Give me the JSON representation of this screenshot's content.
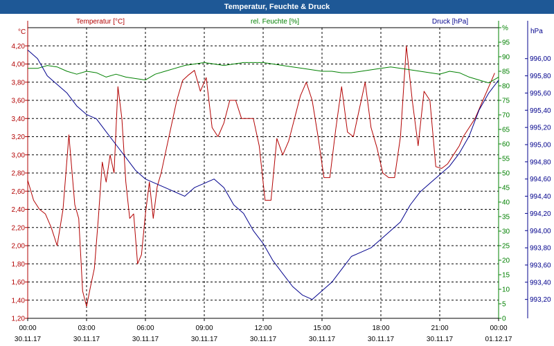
{
  "window_title": "Temperatur, Feuchte & Druck",
  "colors": {
    "temperature": "#b20000",
    "humidity": "#008000",
    "pressure": "#00008c",
    "title_bar": "#1e5896",
    "grid": "#000000"
  },
  "chart_data": {
    "type": "line",
    "title": "Temperatur, Feuchte & Druck",
    "grid": true,
    "x_ticks": [
      {
        "time": "00:00",
        "date": "30.11.17"
      },
      {
        "time": "03:00",
        "date": "30.11.17"
      },
      {
        "time": "06:00",
        "date": "30.11.17"
      },
      {
        "time": "09:00",
        "date": "30.11.17"
      },
      {
        "time": "12:00",
        "date": "30.11.17"
      },
      {
        "time": "15:00",
        "date": "30.11.17"
      },
      {
        "time": "18:00",
        "date": "30.11.17"
      },
      {
        "time": "21:00",
        "date": "30.11.17"
      },
      {
        "time": "00:00",
        "date": "01.12.17"
      }
    ],
    "axes": {
      "temperature": {
        "label": "Temperatur [°C]",
        "unit": "°C",
        "ylim": [
          1.2,
          4.4
        ],
        "ticks": [
          "1,20",
          "1,40",
          "1,60",
          "1,80",
          "2,00",
          "2,20",
          "2,40",
          "2,60",
          "2,80",
          "3,00",
          "3,20",
          "3,40",
          "3,60",
          "3,80",
          "4,00",
          "4,20"
        ]
      },
      "humidity": {
        "label": "rel. Feuchte [%]",
        "unit": "%",
        "ylim": [
          0,
          100
        ],
        "ticks": [
          "0",
          "5",
          "10",
          "15",
          "20",
          "25",
          "30",
          "35",
          "40",
          "45",
          "50",
          "55",
          "60",
          "65",
          "70",
          "75",
          "80",
          "85",
          "90",
          "95",
          "%"
        ]
      },
      "pressure": {
        "label": "Druck [hPa]",
        "unit": "hPa",
        "ylim": [
          992.98,
          996.36
        ],
        "ticks": [
          "993,20",
          "993,40",
          "993,60",
          "993,80",
          "994,00",
          "994,20",
          "994,40",
          "994,60",
          "994,80",
          "995,00",
          "995,20",
          "995,40",
          "995,60",
          "995,80",
          "996,00"
        ]
      }
    },
    "series": [
      {
        "name": "Temperatur [°C]",
        "axis": "temperature",
        "x_hours": [
          0,
          0.3,
          0.6,
          0.9,
          1.2,
          1.5,
          1.8,
          2.1,
          2.4,
          2.6,
          2.8,
          3.0,
          3.2,
          3.4,
          3.6,
          3.8,
          4.0,
          4.2,
          4.4,
          4.6,
          4.8,
          5.0,
          5.2,
          5.4,
          5.6,
          5.8,
          6.0,
          6.2,
          6.4,
          6.6,
          6.8,
          7.0,
          7.3,
          7.6,
          7.9,
          8.2,
          8.5,
          8.8,
          9.1,
          9.4,
          9.7,
          10.0,
          10.3,
          10.6,
          10.9,
          11.2,
          11.5,
          11.8,
          12.1,
          12.4,
          12.7,
          13.0,
          13.3,
          13.6,
          13.9,
          14.2,
          14.5,
          14.8,
          15.1,
          15.4,
          15.7,
          16.0,
          16.3,
          16.6,
          16.9,
          17.2,
          17.5,
          17.8,
          18.1,
          18.4,
          18.7,
          19.0,
          19.3,
          19.6,
          19.9,
          20.2,
          20.5,
          20.8,
          21.1,
          21.4,
          21.7,
          22.0,
          22.2,
          22.5,
          22.8,
          23.0,
          23.2,
          23.4,
          23.6,
          23.8
        ],
        "values": [
          2.72,
          2.5,
          2.4,
          2.35,
          2.2,
          2.0,
          2.4,
          3.22,
          2.45,
          2.3,
          1.5,
          1.33,
          1.55,
          1.75,
          2.3,
          2.92,
          2.7,
          3.0,
          2.8,
          3.75,
          3.4,
          2.7,
          2.3,
          2.35,
          1.8,
          1.9,
          2.35,
          2.7,
          2.3,
          2.65,
          2.8,
          3.0,
          3.3,
          3.6,
          3.82,
          3.88,
          3.93,
          3.7,
          3.85,
          3.3,
          3.2,
          3.35,
          3.6,
          3.6,
          3.4,
          3.4,
          3.4,
          3.1,
          2.5,
          2.5,
          3.18,
          3.0,
          3.15,
          3.4,
          3.65,
          3.8,
          3.6,
          3.2,
          2.75,
          2.75,
          3.28,
          3.75,
          3.25,
          3.2,
          3.5,
          3.8,
          3.3,
          3.08,
          2.8,
          2.75,
          2.75,
          3.2,
          4.2,
          3.6,
          3.1,
          3.7,
          3.6,
          2.87,
          2.85,
          2.9,
          3.0,
          3.1,
          3.2,
          3.3,
          3.4,
          3.5,
          3.6,
          3.7,
          3.8,
          3.9
        ]
      },
      {
        "name": "rel. Feuchte [%]",
        "axis": "humidity",
        "x_hours": [
          0,
          0.5,
          1.0,
          1.5,
          2.0,
          2.5,
          3.0,
          3.5,
          4.0,
          4.5,
          5.0,
          5.5,
          6.0,
          6.5,
          7.0,
          7.5,
          8.0,
          8.5,
          9.0,
          9.5,
          10.0,
          10.5,
          11.0,
          11.5,
          12.0,
          12.5,
          13.0,
          13.5,
          14.0,
          14.5,
          15.0,
          15.5,
          16.0,
          16.5,
          17.0,
          17.5,
          18.0,
          18.5,
          19.0,
          19.5,
          20.0,
          20.5,
          21.0,
          21.5,
          22.0,
          22.5,
          23.0,
          23.5,
          24.0
        ],
        "values": [
          86,
          86,
          87,
          86.5,
          85,
          84,
          85,
          84.5,
          83,
          84,
          83,
          82.5,
          82,
          84,
          85,
          86,
          87,
          87.5,
          88,
          87.5,
          87,
          87.5,
          88,
          88,
          88,
          87.5,
          87,
          86.5,
          86,
          85.5,
          85,
          85,
          84.5,
          84.5,
          85,
          85.5,
          86,
          86.5,
          86,
          85.5,
          85,
          84.5,
          84,
          85,
          84.5,
          83,
          82,
          81,
          83
        ]
      },
      {
        "name": "Druck [hPa]",
        "axis": "pressure",
        "x_hours": [
          0,
          0.5,
          1.0,
          1.5,
          2.0,
          2.5,
          3.0,
          3.5,
          4.0,
          4.5,
          5.0,
          5.5,
          6.0,
          6.5,
          7.0,
          7.5,
          8.0,
          8.5,
          9.0,
          9.5,
          10.0,
          10.5,
          11.0,
          11.5,
          12.0,
          12.5,
          13.0,
          13.5,
          14.0,
          14.5,
          15.0,
          15.5,
          16.0,
          16.5,
          17.0,
          17.5,
          18.0,
          18.5,
          19.0,
          19.5,
          20.0,
          20.5,
          21.0,
          21.5,
          22.0,
          22.5,
          23.0,
          23.5,
          24.0
        ],
        "values": [
          996.1,
          996.0,
          995.8,
          995.7,
          995.6,
          995.45,
          995.35,
          995.3,
          995.15,
          995.0,
          994.85,
          994.7,
          994.6,
          994.55,
          994.5,
          994.45,
          994.4,
          994.5,
          994.55,
          994.6,
          994.5,
          994.3,
          994.2,
          994.0,
          993.85,
          993.65,
          993.5,
          993.35,
          993.25,
          993.2,
          993.3,
          993.4,
          993.55,
          993.7,
          993.75,
          993.8,
          993.9,
          994.0,
          994.1,
          994.3,
          994.45,
          994.55,
          994.65,
          994.75,
          994.9,
          995.1,
          995.4,
          995.6,
          995.75
        ]
      }
    ]
  }
}
